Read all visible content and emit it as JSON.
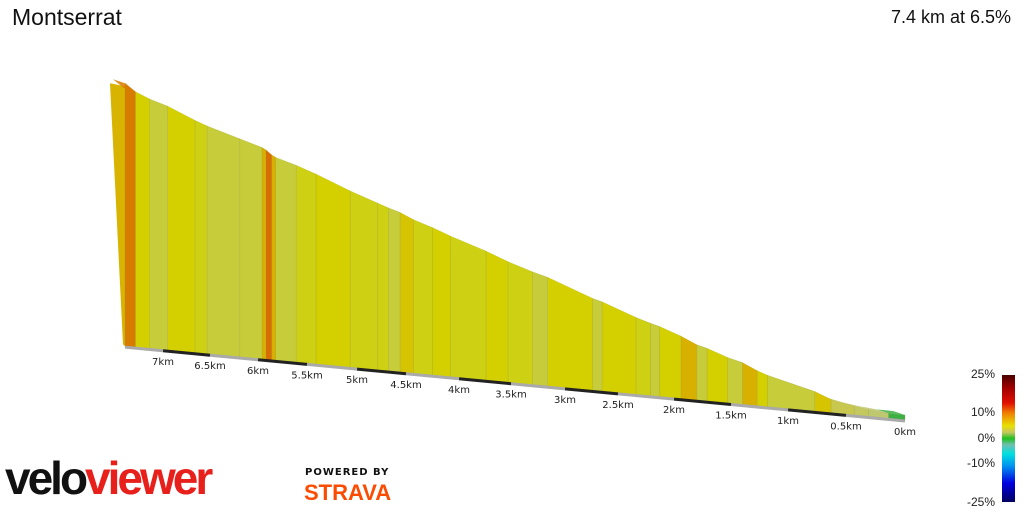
{
  "header": {
    "title": "Montserrat",
    "summary": "7.4 km at 6.5%"
  },
  "chart_data": {
    "type": "area",
    "title": "Montserrat",
    "xlabel": "",
    "ylabel": "",
    "x_direction": "reversed",
    "ticks": [
      {
        "km": 7,
        "label": "7km"
      },
      {
        "km": 6.5,
        "label": "6.5km"
      },
      {
        "km": 6,
        "label": "6km"
      },
      {
        "km": 5.5,
        "label": "5.5km"
      },
      {
        "km": 5,
        "label": "5km"
      },
      {
        "km": 4.5,
        "label": "4.5km"
      },
      {
        "km": 4,
        "label": "4km"
      },
      {
        "km": 3.5,
        "label": "3.5km"
      },
      {
        "km": 3,
        "label": "3km"
      },
      {
        "km": 2.5,
        "label": "2.5km"
      },
      {
        "km": 2,
        "label": "2km"
      },
      {
        "km": 1.5,
        "label": "1.5km"
      },
      {
        "km": 1,
        "label": "1km"
      },
      {
        "km": 0.5,
        "label": "0.5km"
      },
      {
        "km": 0,
        "label": "0km"
      }
    ],
    "segments": [
      {
        "from": 7.4,
        "to": 7.29,
        "grade": 12
      },
      {
        "from": 7.29,
        "to": 7.14,
        "grade": 7
      },
      {
        "from": 7.14,
        "to": 6.95,
        "grade": 5
      },
      {
        "from": 6.95,
        "to": 6.66,
        "grade": 7
      },
      {
        "from": 6.66,
        "to": 6.53,
        "grade": 6
      },
      {
        "from": 6.53,
        "to": 6.19,
        "grade": 5
      },
      {
        "from": 6.19,
        "to": 5.96,
        "grade": 5
      },
      {
        "from": 5.96,
        "to": 5.92,
        "grade": 9
      },
      {
        "from": 5.92,
        "to": 5.86,
        "grade": 13
      },
      {
        "from": 5.86,
        "to": 5.82,
        "grade": 9
      },
      {
        "from": 5.82,
        "to": 5.61,
        "grade": 5
      },
      {
        "from": 5.61,
        "to": 5.41,
        "grade": 6
      },
      {
        "from": 5.41,
        "to": 5.07,
        "grade": 7
      },
      {
        "from": 5.07,
        "to": 4.79,
        "grade": 6
      },
      {
        "from": 4.79,
        "to": 4.68,
        "grade": 6
      },
      {
        "from": 4.68,
        "to": 4.56,
        "grade": 5
      },
      {
        "from": 4.56,
        "to": 4.43,
        "grade": 8
      },
      {
        "from": 4.43,
        "to": 4.25,
        "grade": 6
      },
      {
        "from": 4.25,
        "to": 4.08,
        "grade": 7
      },
      {
        "from": 4.08,
        "to": 3.74,
        "grade": 6
      },
      {
        "from": 3.74,
        "to": 3.53,
        "grade": 7
      },
      {
        "from": 3.53,
        "to": 3.3,
        "grade": 6
      },
      {
        "from": 3.3,
        "to": 3.16,
        "grade": 5
      },
      {
        "from": 3.16,
        "to": 2.74,
        "grade": 7
      },
      {
        "from": 2.74,
        "to": 2.65,
        "grade": 5
      },
      {
        "from": 2.65,
        "to": 2.34,
        "grade": 7
      },
      {
        "from": 2.34,
        "to": 2.21,
        "grade": 6
      },
      {
        "from": 2.21,
        "to": 2.13,
        "grade": 5
      },
      {
        "from": 2.13,
        "to": 1.94,
        "grade": 7
      },
      {
        "from": 1.94,
        "to": 1.8,
        "grade": 9
      },
      {
        "from": 1.8,
        "to": 1.71,
        "grade": 5
      },
      {
        "from": 1.71,
        "to": 1.53,
        "grade": 7
      },
      {
        "from": 1.53,
        "to": 1.4,
        "grade": 5
      },
      {
        "from": 1.4,
        "to": 1.27,
        "grade": 9
      },
      {
        "from": 1.27,
        "to": 1.18,
        "grade": 7
      },
      {
        "from": 1.18,
        "to": 0.77,
        "grade": 5
      },
      {
        "from": 0.77,
        "to": 0.63,
        "grade": 8
      },
      {
        "from": 0.63,
        "to": 0.43,
        "grade": 4
      },
      {
        "from": 0.43,
        "to": 0.31,
        "grade": 3
      },
      {
        "from": 0.31,
        "to": 0.14,
        "grade": 2
      },
      {
        "from": 0.14,
        "to": 0.0,
        "grade": 0
      }
    ],
    "legend": {
      "labels": [
        "25%",
        "10%",
        "0%",
        "-10%",
        "-25%"
      ]
    }
  },
  "branding": {
    "logo_a": "velo",
    "logo_b": "viewer",
    "powered": "POWERED BY",
    "strava": "STRAVA"
  }
}
